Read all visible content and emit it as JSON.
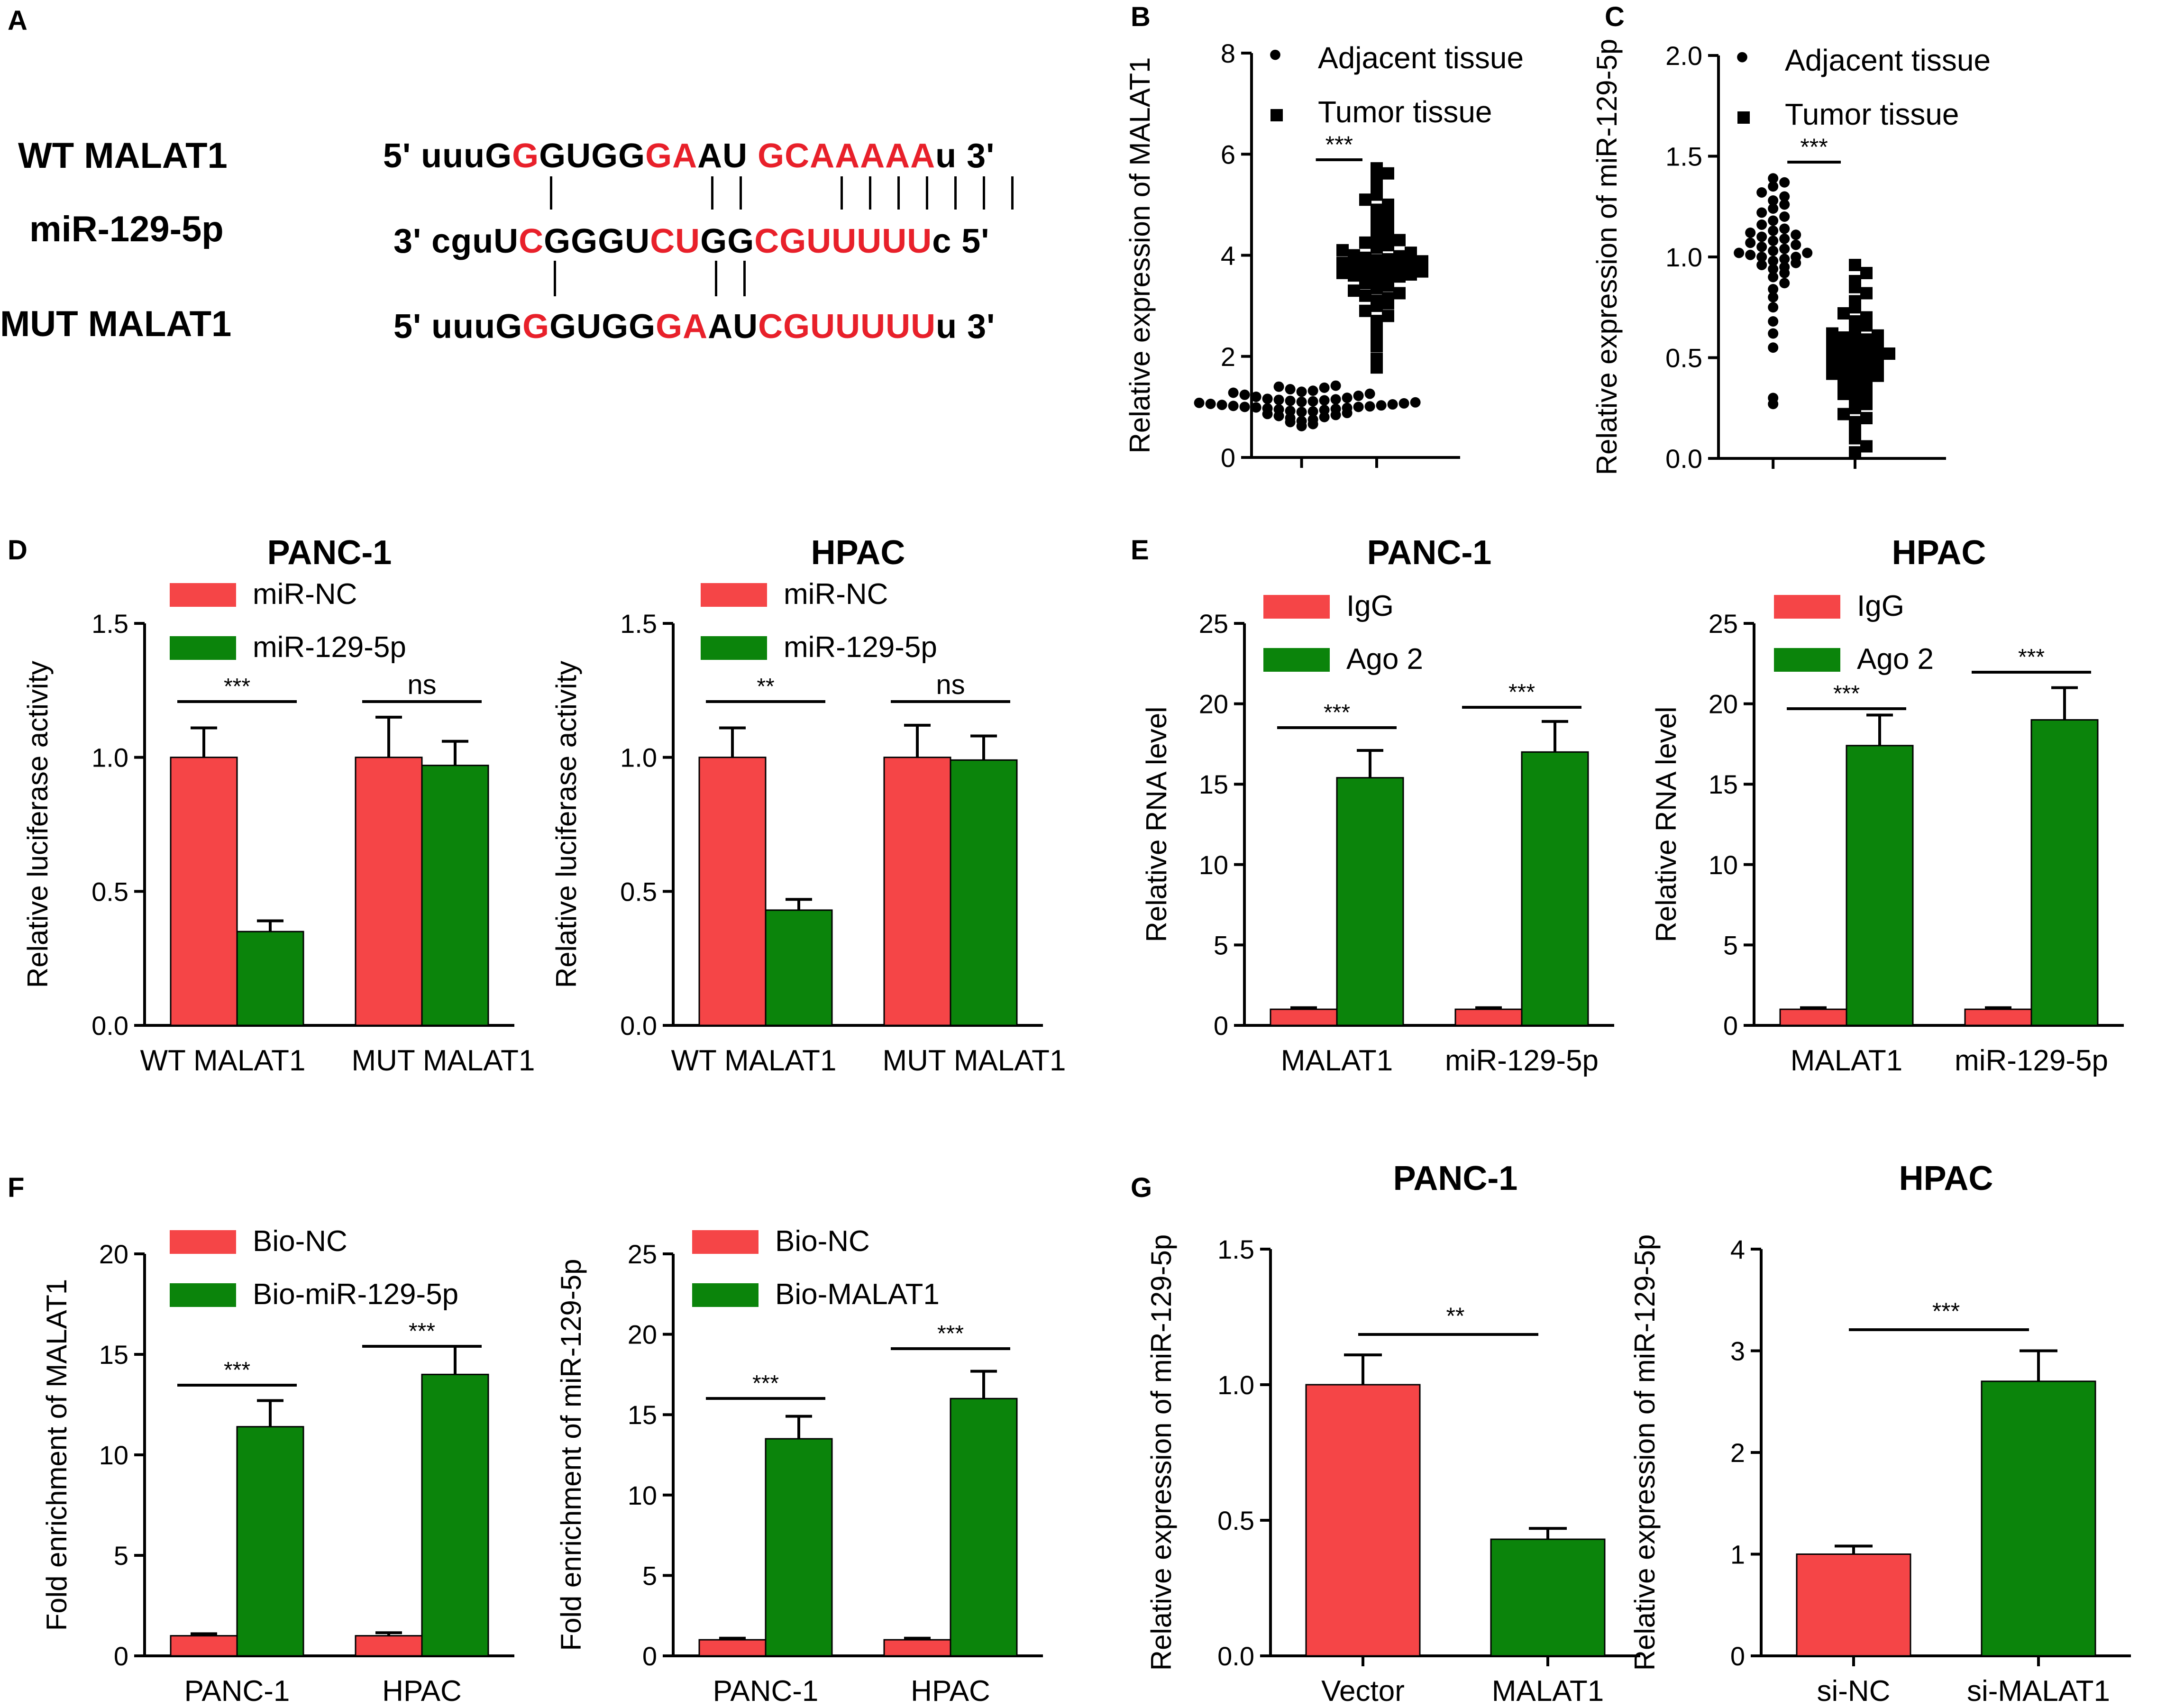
{
  "panel_letters": {
    "A": "A",
    "B": "B",
    "C": "C",
    "D": "D",
    "E": "E",
    "F": "F",
    "G": "G"
  },
  "colors": {
    "red": "#f54547",
    "green": "#0b840b",
    "seq_red": "#e8202a",
    "black": "#000000"
  },
  "panel_A": {
    "labels": {
      "wt": "WT MALAT1",
      "mir": "miR-129-5p",
      "mut": "MUT MALAT1"
    },
    "wt_seq": [
      {
        "t": "5' uuuG",
        "c": "k"
      },
      {
        "t": "G",
        "c": "r"
      },
      {
        "t": "GUGG",
        "c": "k"
      },
      {
        "t": "GA",
        "c": "r"
      },
      {
        "t": "AU  ",
        "c": "k"
      },
      {
        "t": "GCAAAAA",
        "c": "r"
      },
      {
        "t": "u 3'",
        "c": "k"
      }
    ],
    "mir_seq": [
      {
        "t": "3' cguU",
        "c": "k"
      },
      {
        "t": "C",
        "c": "r"
      },
      {
        "t": "GGGU",
        "c": "k"
      },
      {
        "t": "CU",
        "c": "r"
      },
      {
        "t": "GG",
        "c": "k"
      },
      {
        "t": "CGUUUUU",
        "c": "r"
      },
      {
        "t": "c 5'",
        "c": "k"
      }
    ],
    "mut_seq": [
      {
        "t": "5' uuuG",
        "c": "k"
      },
      {
        "t": "G",
        "c": "r"
      },
      {
        "t": "GUGG",
        "c": "k"
      },
      {
        "t": "GA",
        "c": "r"
      },
      {
        "t": "AU",
        "c": "k"
      },
      {
        "t": "CGUUUUU",
        "c": "r"
      },
      {
        "t": "u 3'",
        "c": "k"
      }
    ]
  },
  "chart_data": [
    {
      "id": "B",
      "type": "scatter",
      "title": "",
      "ylabel": "Relative expression of MALAT1",
      "xlabel": "",
      "ylim": [
        0,
        8
      ],
      "yticks": [
        0,
        2,
        4,
        6,
        8
      ],
      "ytick_labels": [
        "0",
        "2",
        "4",
        "6",
        "8"
      ],
      "legend": [
        "Adjacent tissue",
        "Tumor tissue"
      ],
      "significance": "***",
      "groups": [
        {
          "name": "Adjacent tissue",
          "marker": "circle",
          "values": [
            0.62,
            0.66,
            0.7,
            0.72,
            0.75,
            0.78,
            0.8,
            0.82,
            0.84,
            0.86,
            0.88,
            0.9,
            0.91,
            0.92,
            0.94,
            0.95,
            0.96,
            0.97,
            0.98,
            0.99,
            1.0,
            1.0,
            1.01,
            1.02,
            1.03,
            1.04,
            1.05,
            1.06,
            1.07,
            1.08,
            1.09,
            1.1,
            1.11,
            1.12,
            1.13,
            1.14,
            1.15,
            1.16,
            1.18,
            1.2,
            1.22,
            1.24,
            1.26,
            1.28,
            1.3,
            1.32,
            1.35,
            1.38,
            1.4,
            1.42
          ]
        },
        {
          "name": "Tumor tissue",
          "marker": "square",
          "values": [
            1.78,
            1.95,
            2.2,
            2.4,
            2.55,
            2.7,
            2.8,
            2.9,
            3.0,
            3.05,
            3.1,
            3.15,
            3.2,
            3.25,
            3.3,
            3.35,
            3.4,
            3.45,
            3.5,
            3.52,
            3.55,
            3.58,
            3.6,
            3.62,
            3.65,
            3.68,
            3.7,
            3.72,
            3.75,
            3.78,
            3.8,
            3.82,
            3.85,
            3.88,
            3.9,
            3.92,
            3.95,
            3.98,
            4.0,
            4.05,
            4.1,
            4.15,
            4.2,
            4.25,
            4.3,
            4.35,
            4.4,
            4.5,
            4.6,
            4.7,
            4.8,
            4.9,
            5.0,
            5.1,
            5.2,
            5.35,
            5.5,
            5.62,
            5.72
          ]
        }
      ]
    },
    {
      "id": "C",
      "type": "scatter",
      "title": "",
      "ylabel": "Relative expression of miR-129-5p",
      "xlabel": "",
      "ylim": [
        0,
        2.0
      ],
      "yticks": [
        0,
        0.5,
        1.0,
        1.5,
        2.0
      ],
      "ytick_labels": [
        "0.0",
        "0.5",
        "1.0",
        "1.5",
        "2.0"
      ],
      "legend": [
        "Adjacent tissue",
        "Tumor tissue"
      ],
      "significance": "***",
      "groups": [
        {
          "name": "Adjacent tissue",
          "marker": "circle",
          "values": [
            0.27,
            0.3,
            0.55,
            0.62,
            0.68,
            0.75,
            0.8,
            0.84,
            0.87,
            0.9,
            0.92,
            0.94,
            0.95,
            0.96,
            0.97,
            0.98,
            0.99,
            1.0,
            1.0,
            1.01,
            1.02,
            1.02,
            1.03,
            1.04,
            1.05,
            1.06,
            1.07,
            1.08,
            1.09,
            1.1,
            1.11,
            1.12,
            1.13,
            1.14,
            1.16,
            1.18,
            1.2,
            1.22,
            1.24,
            1.26,
            1.28,
            1.3,
            1.32,
            1.35,
            1.37,
            1.39
          ]
        },
        {
          "name": "Tumor tissue",
          "marker": "square",
          "values": [
            0.03,
            0.06,
            0.1,
            0.14,
            0.18,
            0.2,
            0.22,
            0.25,
            0.27,
            0.29,
            0.3,
            0.32,
            0.33,
            0.35,
            0.36,
            0.38,
            0.39,
            0.4,
            0.41,
            0.42,
            0.43,
            0.44,
            0.45,
            0.46,
            0.47,
            0.48,
            0.49,
            0.5,
            0.5,
            0.51,
            0.52,
            0.53,
            0.54,
            0.55,
            0.56,
            0.57,
            0.58,
            0.59,
            0.6,
            0.61,
            0.62,
            0.64,
            0.66,
            0.68,
            0.7,
            0.72,
            0.75,
            0.78,
            0.82,
            0.85,
            0.88,
            0.92,
            0.96
          ]
        }
      ]
    },
    {
      "id": "D1",
      "type": "bar",
      "title": "PANC-1",
      "ylabel": "Relative luciferase activity",
      "xlabel": "",
      "categories": [
        "WT MALAT1",
        "MUT MALAT1"
      ],
      "ylim": [
        0,
        1.5
      ],
      "yticks": [
        0,
        0.5,
        1.0,
        1.5
      ],
      "ytick_labels": [
        "0.0",
        "0.5",
        "1.0",
        "1.5"
      ],
      "series": [
        {
          "name": "miR-NC",
          "values": [
            1.0,
            1.0
          ],
          "errors": [
            0.11,
            0.15
          ]
        },
        {
          "name": "miR-129-5p",
          "values": [
            0.35,
            0.97
          ],
          "errors": [
            0.04,
            0.09
          ]
        }
      ],
      "significance": [
        "***",
        "ns"
      ]
    },
    {
      "id": "D2",
      "type": "bar",
      "title": "HPAC",
      "ylabel": "Relative luciferase activity",
      "xlabel": "",
      "categories": [
        "WT MALAT1",
        "MUT MALAT1"
      ],
      "ylim": [
        0,
        1.5
      ],
      "yticks": [
        0,
        0.5,
        1.0,
        1.5
      ],
      "ytick_labels": [
        "0.0",
        "0.5",
        "1.0",
        "1.5"
      ],
      "series": [
        {
          "name": "miR-NC",
          "values": [
            1.0,
            1.0
          ],
          "errors": [
            0.11,
            0.12
          ]
        },
        {
          "name": "miR-129-5p",
          "values": [
            0.43,
            0.99
          ],
          "errors": [
            0.04,
            0.09
          ]
        }
      ],
      "significance": [
        "**",
        "ns"
      ]
    },
    {
      "id": "E1",
      "type": "bar",
      "title": "PANC-1",
      "ylabel": "Relative RNA level",
      "xlabel": "",
      "categories": [
        "MALAT1",
        "miR-129-5p"
      ],
      "ylim": [
        0,
        25
      ],
      "yticks": [
        0,
        5,
        10,
        15,
        20,
        25
      ],
      "ytick_labels": [
        "0",
        "5",
        "10",
        "15",
        "20",
        "25"
      ],
      "series": [
        {
          "name": "IgG",
          "values": [
            1.0,
            1.0
          ],
          "errors": [
            0.1,
            0.1
          ]
        },
        {
          "name": "Ago 2",
          "values": [
            15.4,
            17.0
          ],
          "errors": [
            1.7,
            1.9
          ]
        }
      ],
      "significance": [
        "***",
        "***"
      ]
    },
    {
      "id": "E2",
      "type": "bar",
      "title": "HPAC",
      "ylabel": "Relative RNA level",
      "xlabel": "",
      "categories": [
        "MALAT1",
        "miR-129-5p"
      ],
      "ylim": [
        0,
        25
      ],
      "yticks": [
        0,
        5,
        10,
        15,
        20,
        25
      ],
      "ytick_labels": [
        "0",
        "5",
        "10",
        "15",
        "20",
        "25"
      ],
      "series": [
        {
          "name": "IgG",
          "values": [
            1.0,
            1.0
          ],
          "errors": [
            0.1,
            0.1
          ]
        },
        {
          "name": "Ago 2",
          "values": [
            17.4,
            19.0
          ],
          "errors": [
            1.9,
            2.0
          ]
        }
      ],
      "significance": [
        "***",
        "***"
      ]
    },
    {
      "id": "F1",
      "type": "bar",
      "title": "",
      "ylabel": "Fold enrichment of MALAT1",
      "xlabel": "",
      "categories": [
        "PANC-1",
        "HPAC"
      ],
      "ylim": [
        0,
        20
      ],
      "yticks": [
        0,
        5,
        10,
        15,
        20
      ],
      "ytick_labels": [
        "0",
        "5",
        "10",
        "15",
        "20"
      ],
      "series": [
        {
          "name": "Bio-NC",
          "values": [
            1.0,
            1.0
          ],
          "errors": [
            0.1,
            0.15
          ]
        },
        {
          "name": "Bio-miR-129-5p",
          "values": [
            11.4,
            14.0
          ],
          "errors": [
            1.3,
            1.4
          ]
        }
      ],
      "significance": [
        "***",
        "***"
      ]
    },
    {
      "id": "F2",
      "type": "bar",
      "title": "",
      "ylabel": "Fold enrichment of miR-129-5p",
      "xlabel": "",
      "categories": [
        "PANC-1",
        "HPAC"
      ],
      "ylim": [
        0,
        25
      ],
      "yticks": [
        0,
        5,
        10,
        15,
        20,
        25
      ],
      "ytick_labels": [
        "0",
        "5",
        "10",
        "15",
        "20",
        "25"
      ],
      "series": [
        {
          "name": "Bio-NC",
          "values": [
            1.0,
            1.0
          ],
          "errors": [
            0.1,
            0.1
          ]
        },
        {
          "name": "Bio-MALAT1",
          "values": [
            13.5,
            16.0
          ],
          "errors": [
            1.4,
            1.7
          ]
        }
      ],
      "significance": [
        "***",
        "***"
      ]
    },
    {
      "id": "G1",
      "type": "bar",
      "title": "PANC-1",
      "ylabel": "Relative  expression of miR-129-5p",
      "xlabel": "",
      "categories": [
        "Vector",
        "MALAT1"
      ],
      "ylim": [
        0,
        1.5
      ],
      "yticks": [
        0,
        0.5,
        1.0,
        1.5
      ],
      "ytick_labels": [
        "0.0",
        "0.5",
        "1.0",
        "1.5"
      ],
      "values": [
        1.0,
        0.43
      ],
      "errors": [
        0.11,
        0.04
      ],
      "bar_colors": [
        "red",
        "green"
      ],
      "significance": "**"
    },
    {
      "id": "G2",
      "type": "bar",
      "title": "HPAC",
      "ylabel": "Relative  expression of miR-129-5p",
      "xlabel": "",
      "categories": [
        "si-NC",
        "si-MALAT1"
      ],
      "ylim": [
        0,
        4
      ],
      "yticks": [
        0,
        1,
        2,
        3,
        4
      ],
      "ytick_labels": [
        "0",
        "1",
        "2",
        "3",
        "4"
      ],
      "values": [
        1.0,
        2.7
      ],
      "errors": [
        0.08,
        0.3
      ],
      "bar_colors": [
        "red",
        "green"
      ],
      "significance": "***"
    }
  ]
}
